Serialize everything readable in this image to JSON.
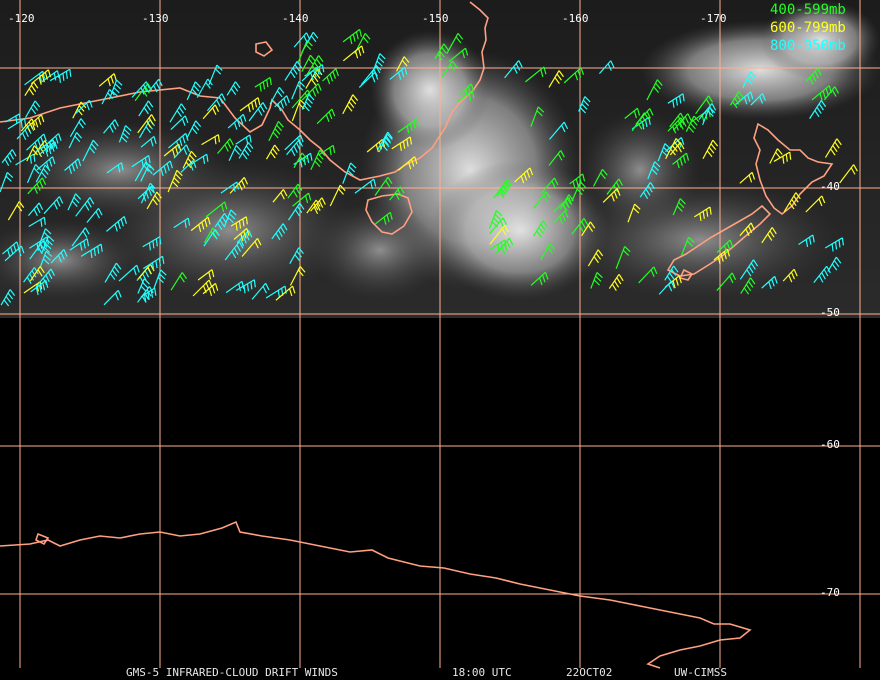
{
  "map": {
    "lon_labels": [
      "-120",
      "-130",
      "-140",
      "-150",
      "-160",
      "-170"
    ],
    "lat_labels": [
      "-40",
      "-50",
      "-60",
      "-70"
    ],
    "legend": [
      {
        "label": "400-599mb",
        "color": "#22ff22"
      },
      {
        "label": "600-799mb",
        "color": "#ffff22"
      },
      {
        "label": "800-950mb",
        "color": "#22ffff"
      }
    ],
    "footer": {
      "product": "GMS-5 INFRARED-CLOUD DRIFT WINDS",
      "time": "18:00 UTC",
      "date": "22OCT02",
      "source": "UW-CIMSS"
    },
    "colors": {
      "grid": "#ffb090",
      "coast": "#ffa080",
      "background": "#000000"
    }
  }
}
